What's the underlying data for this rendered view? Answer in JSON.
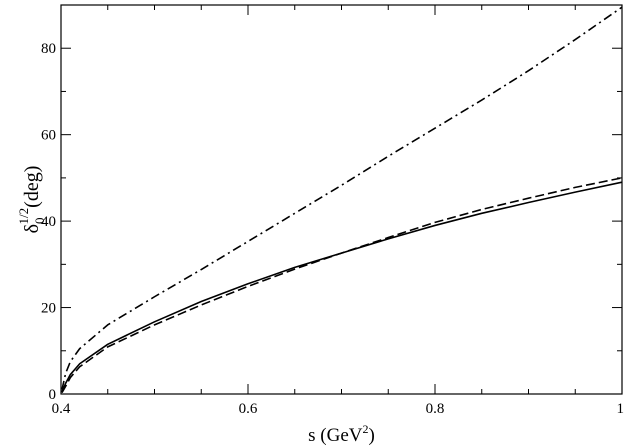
{
  "chart_data": {
    "type": "line",
    "xlabel": {
      "main": "s (GeV",
      "sup": "2",
      "close": ")"
    },
    "ylabel": {
      "main": "δ",
      "sub": "0",
      "sup": "1/2",
      "unit": "(deg)"
    },
    "xlim": [
      0.4,
      1.0
    ],
    "ylim": [
      0,
      90
    ],
    "xticks": [
      0.4,
      0.6,
      0.8,
      1.0
    ],
    "xtick_labels": [
      "0.4",
      "0.6",
      "0.8",
      "1"
    ],
    "yticks": [
      0,
      20,
      40,
      60,
      80
    ],
    "ytick_labels": [
      "0",
      "20",
      "40",
      "60",
      "80"
    ],
    "x_minor_step": 0.05,
    "y_minor_step": 10,
    "grid": false,
    "series": [
      {
        "style": "solid",
        "color": "#000000",
        "x": [
          0.401,
          0.405,
          0.41,
          0.42,
          0.45,
          0.5,
          0.55,
          0.6,
          0.65,
          0.7,
          0.75,
          0.8,
          0.85,
          0.9,
          0.95,
          1.0
        ],
        "y": [
          0.5,
          2.5,
          4.5,
          7.0,
          11.5,
          16.7,
          21.4,
          25.5,
          29.3,
          32.6,
          35.9,
          39.0,
          41.8,
          44.3,
          46.7,
          49.0
        ]
      },
      {
        "style": "dashed",
        "color": "#000000",
        "x": [
          0.401,
          0.405,
          0.41,
          0.42,
          0.45,
          0.5,
          0.55,
          0.6,
          0.65,
          0.7,
          0.75,
          0.8,
          0.85,
          0.9,
          0.95,
          1.0
        ],
        "y": [
          0.3,
          1.8,
          3.8,
          6.3,
          10.9,
          16.0,
          20.6,
          24.9,
          28.9,
          32.6,
          36.2,
          39.7,
          42.7,
          45.3,
          47.8,
          50.0
        ]
      },
      {
        "style": "dashdot",
        "color": "#000000",
        "x": [
          0.401,
          0.405,
          0.41,
          0.42,
          0.45,
          0.5,
          0.55,
          0.6,
          0.65,
          0.7,
          0.75,
          0.8,
          0.85,
          0.9,
          0.95,
          1.0
        ],
        "y": [
          1.0,
          4.8,
          7.5,
          10.5,
          16.0,
          22.5,
          28.8,
          35.3,
          41.8,
          48.3,
          55.0,
          61.5,
          68.0,
          74.8,
          82.0,
          89.5
        ]
      }
    ]
  }
}
